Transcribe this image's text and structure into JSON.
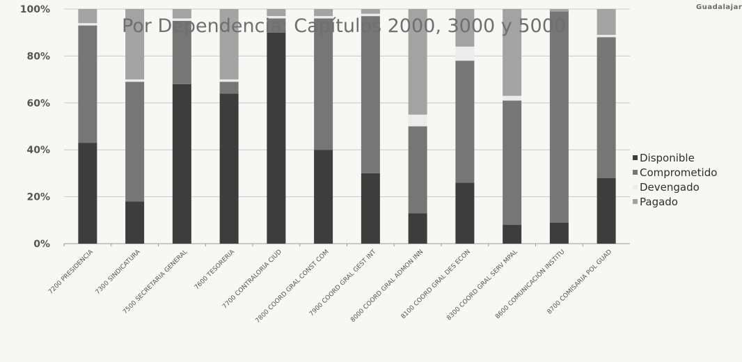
{
  "brand": "Guadalajara",
  "colors": {
    "Disponible": "#3d3d3d",
    "Comprometido": "#767676",
    "Devengado": "#ececec",
    "Pagado": "#a3a3a3",
    "grid": "#c9c9c9",
    "axis_text": "#555555"
  },
  "chart_data": {
    "type": "bar",
    "stacked": true,
    "percent": true,
    "title": "Por Dependencia: Capítulos 2000, 3000 y 5000",
    "xlabel": "",
    "ylabel": "",
    "ylim": [
      0,
      100
    ],
    "yticks": [
      "0%",
      "20%",
      "40%",
      "60%",
      "80%",
      "100%"
    ],
    "grid": true,
    "legend_position": "right",
    "categories": [
      "7200 PRESIDENCIA",
      "7300 SINDICATURA",
      "7500 SECRETARIA GENERAL",
      "7600 TESORERIA",
      "7700 CONTRALORIA CIUD",
      "7800 COORD GRAL CONST COM",
      "7900 COORD GRAL GEST INT",
      "8000 COORD GRAL ADMON INN",
      "8100 COORD GRAL DES ECON",
      "8300 COORD GRAL SERV MPAL",
      "8600 COMUNICACIÓN INSTITU",
      "8700 COMISARIA POL GUAD"
    ],
    "series": [
      {
        "name": "Disponible",
        "values": [
          43,
          18,
          68,
          64,
          90,
          40,
          30,
          13,
          26,
          8,
          9,
          28
        ]
      },
      {
        "name": "Comprometido",
        "values": [
          50,
          51,
          27,
          5,
          6,
          56,
          67,
          37,
          52,
          53,
          90,
          60
        ]
      },
      {
        "name": "Devengado",
        "values": [
          1,
          1,
          1,
          1,
          1,
          1,
          1,
          5,
          6,
          2,
          0,
          1
        ]
      },
      {
        "name": "Pagado",
        "values": [
          6,
          30,
          4,
          30,
          3,
          3,
          2,
          45,
          16,
          37,
          1,
          11
        ]
      }
    ]
  }
}
